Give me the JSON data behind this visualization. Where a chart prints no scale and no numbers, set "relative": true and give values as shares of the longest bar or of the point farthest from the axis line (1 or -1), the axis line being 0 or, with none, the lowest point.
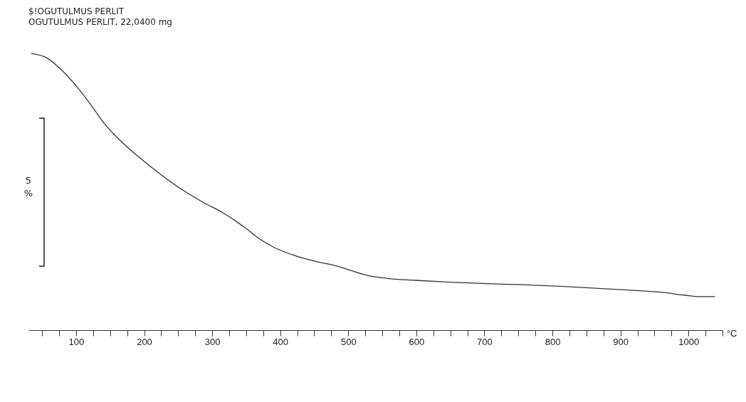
{
  "chart_data": {
    "type": "line",
    "title": "$!OGUTULMUS PERLIT",
    "subtitle": "OGUTULMUS PERLIT, 22,0400 mg",
    "xlabel": "°C",
    "relative": true,
    "color": "#333333",
    "x": [
      34,
      57,
      78,
      99,
      120,
      141,
      167,
      193,
      224,
      255,
      286,
      318,
      333,
      349,
      370,
      391,
      422,
      453,
      484,
      505,
      526,
      557,
      599,
      651,
      703,
      755,
      807,
      859,
      911,
      964,
      995,
      1016,
      1039
    ],
    "values": [
      1.0,
      0.984,
      0.942,
      0.886,
      0.82,
      0.748,
      0.68,
      0.624,
      0.563,
      0.509,
      0.463,
      0.421,
      0.397,
      0.369,
      0.329,
      0.299,
      0.269,
      0.248,
      0.231,
      0.215,
      0.199,
      0.187,
      0.18,
      0.173,
      0.168,
      0.164,
      0.159,
      0.152,
      0.145,
      0.136,
      0.126,
      0.121,
      0.121
    ],
    "xlim": [
      30,
      1050
    ],
    "xticks": [
      {
        "value": 50,
        "label": null
      },
      {
        "value": 75,
        "label": null
      },
      100,
      {
        "value": 125,
        "label": null
      },
      {
        "value": 150,
        "label": null
      },
      {
        "value": 175,
        "label": null
      },
      200,
      {
        "value": 225,
        "label": null
      },
      {
        "value": 250,
        "label": null
      },
      {
        "value": 275,
        "label": null
      },
      300,
      {
        "value": 325,
        "label": null
      },
      {
        "value": 350,
        "label": null
      },
      {
        "value": 375,
        "label": null
      },
      400,
      {
        "value": 425,
        "label": null
      },
      {
        "value": 450,
        "label": null
      },
      {
        "value": 475,
        "label": null
      },
      500,
      {
        "value": 525,
        "label": null
      },
      {
        "value": 550,
        "label": null
      },
      {
        "value": 575,
        "label": null
      },
      600,
      {
        "value": 625,
        "label": null
      },
      {
        "value": 650,
        "label": null
      },
      {
        "value": 675,
        "label": null
      },
      700,
      {
        "value": 725,
        "label": null
      },
      {
        "value": 750,
        "label": null
      },
      {
        "value": 775,
        "label": null
      },
      800,
      {
        "value": 825,
        "label": null
      },
      {
        "value": 850,
        "label": null
      },
      {
        "value": 875,
        "label": null
      },
      900,
      {
        "value": 925,
        "label": null
      },
      {
        "value": 950,
        "label": null
      },
      {
        "value": 975,
        "label": null
      },
      1000,
      {
        "value": 1025,
        "label": null
      },
      {
        "value": 1050,
        "label": null
      }
    ],
    "annotations": [
      "5 %"
    ],
    "grid": false
  }
}
